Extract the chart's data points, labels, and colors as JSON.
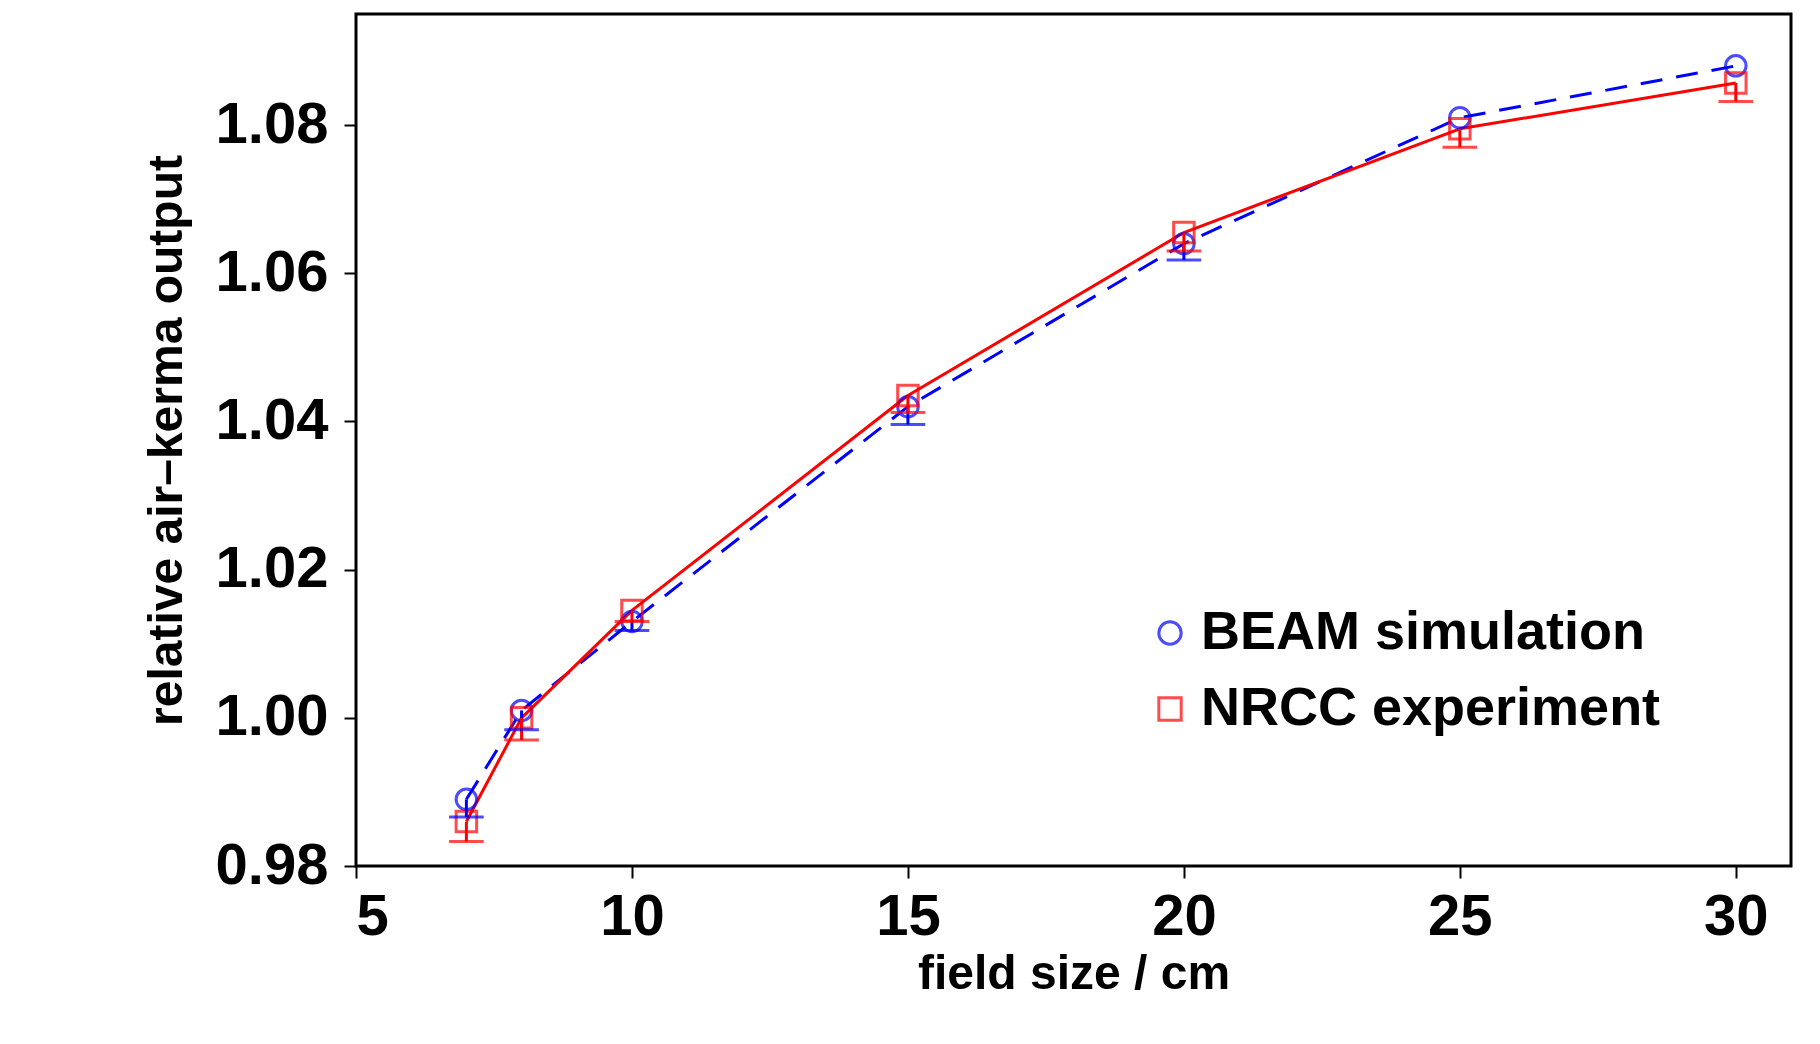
{
  "chart_data": {
    "type": "line",
    "xlabel": "field size / cm",
    "ylabel": "relative air–kerma output",
    "x": [
      7,
      8,
      10,
      15,
      20,
      25,
      30
    ],
    "xlim": [
      5,
      31
    ],
    "xticks": [
      5,
      10,
      15,
      20,
      25,
      30
    ],
    "ylim": [
      0.98,
      1.095
    ],
    "yticks": [
      0.98,
      {
        "value": 1.0,
        "label": "1.00"
      },
      1.02,
      1.04,
      1.06,
      1.08
    ],
    "grid": false,
    "legend": "bottom right",
    "series": [
      {
        "name": "BEAM simulation",
        "color": "#0000ff",
        "marker": "circle",
        "line_style": "dashed",
        "values": [
          0.989,
          1.001,
          1.013,
          1.042,
          1.064,
          1.081,
          1.088
        ],
        "errors": [
          [
            0.9866,
            0.989
          ],
          [
            0.9984,
            1.001
          ],
          [
            1.0118,
            1.013
          ],
          [
            1.0396,
            1.042
          ],
          [
            1.0618,
            1.064
          ],
          null,
          null
        ]
      },
      {
        "name": "NRCC experiment",
        "color": "#ff0000",
        "marker": "square",
        "line_style": "solid",
        "values": [
          0.986,
          1.0,
          1.0145,
          1.0435,
          1.0655,
          1.0795,
          1.0857
        ],
        "errors": [
          [
            0.9833,
            0.986
          ],
          [
            0.997,
            1.0
          ],
          [
            1.013,
            1.0145
          ],
          [
            1.0412,
            1.0435
          ],
          [
            1.063,
            1.0655
          ],
          [
            1.077,
            1.0795
          ],
          [
            1.0832,
            1.0857
          ]
        ]
      }
    ]
  }
}
